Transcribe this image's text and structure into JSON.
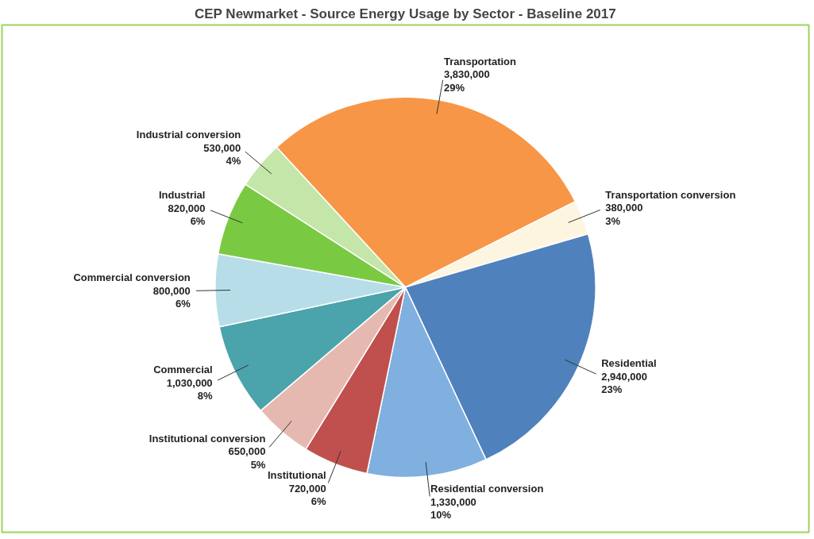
{
  "chart_data": {
    "type": "pie",
    "title": "CEP Newmarket - Source Energy Usage by Sector - Baseline 2017",
    "categories": [
      "Transportation",
      "Transportation conversion",
      "Residential",
      "Residential conversion",
      "Institutional",
      "Institutional conversion",
      "Commercial",
      "Commercial conversion",
      "Industrial",
      "Industrial conversion"
    ],
    "values": [
      3830000,
      380000,
      2940000,
      1330000,
      720000,
      650000,
      1030000,
      800000,
      820000,
      530000
    ],
    "value_labels": [
      "3,830,000\n29%",
      "380,000\n3%",
      "2,940,000\n23%",
      "1,330,000\n10%",
      "720,000\n6%",
      "650,000\n5%",
      "1,030,000\n8%",
      "800,000\n6%",
      "820,000\n6%",
      "530,000\n4%"
    ],
    "colors": [
      "#f79646",
      "#fdf5e0",
      "#4f81bd",
      "#7fb0e0",
      "#c0504d",
      "#e6b9b0",
      "#4ba3ab",
      "#b7dde8",
      "#7ac943",
      "#c4e6a8"
    ]
  }
}
